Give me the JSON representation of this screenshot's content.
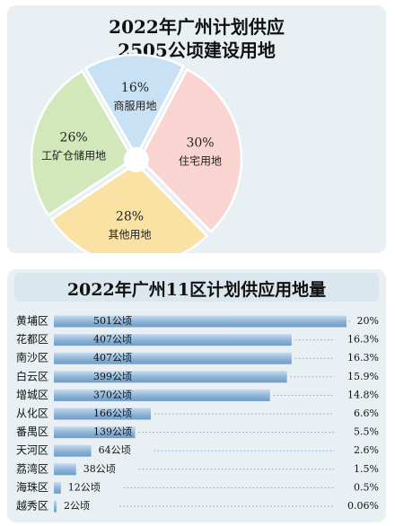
{
  "top": {
    "title_line1": "2022年广州计划供应",
    "title_line2": "2505公顷建设用地"
  },
  "bottom": {
    "title": "2022年广州11区计划供应用地量"
  },
  "chart_data": [
    {
      "type": "pie",
      "title": "2022年广州计划供应2505公顷建设用地",
      "slices": [
        {
          "label": "商服用地",
          "pct_label": "16%",
          "value": 16,
          "color": "#c9e1f4"
        },
        {
          "label": "住宅用地",
          "pct_label": "30%",
          "value": 30,
          "color": "#f9d4d0"
        },
        {
          "label": "其他用地",
          "pct_label": "28%",
          "value": 28,
          "color": "#fae2a4"
        },
        {
          "label": "工矿仓储用地",
          "pct_label": "26%",
          "value": 26,
          "color": "#d3e8ba"
        }
      ]
    },
    {
      "type": "bar",
      "title": "2022年广州11区计划供应用地量",
      "categories": [
        "黄埔区",
        "花都区",
        "南沙区",
        "白云区",
        "增城区",
        "从化区",
        "番禺区",
        "天河区",
        "荔湾区",
        "海珠区",
        "越秀区"
      ],
      "values": [
        501,
        407,
        407,
        399,
        370,
        166,
        139,
        64,
        38,
        12,
        2
      ],
      "value_labels": [
        "501公顷",
        "407公顷",
        "407公顷",
        "399公顷",
        "370公顷",
        "166公顷",
        "139公顷",
        "64公顷",
        "38公顷",
        "12公顷",
        "2公顷"
      ],
      "share_labels": [
        "20%",
        "16.3%",
        "16.3%",
        "15.9%",
        "14.8%",
        "6.6%",
        "5.5%",
        "2.6%",
        "1.5%",
        "0.5%",
        "0.06%"
      ],
      "bar_color": "#8db3d6"
    }
  ]
}
